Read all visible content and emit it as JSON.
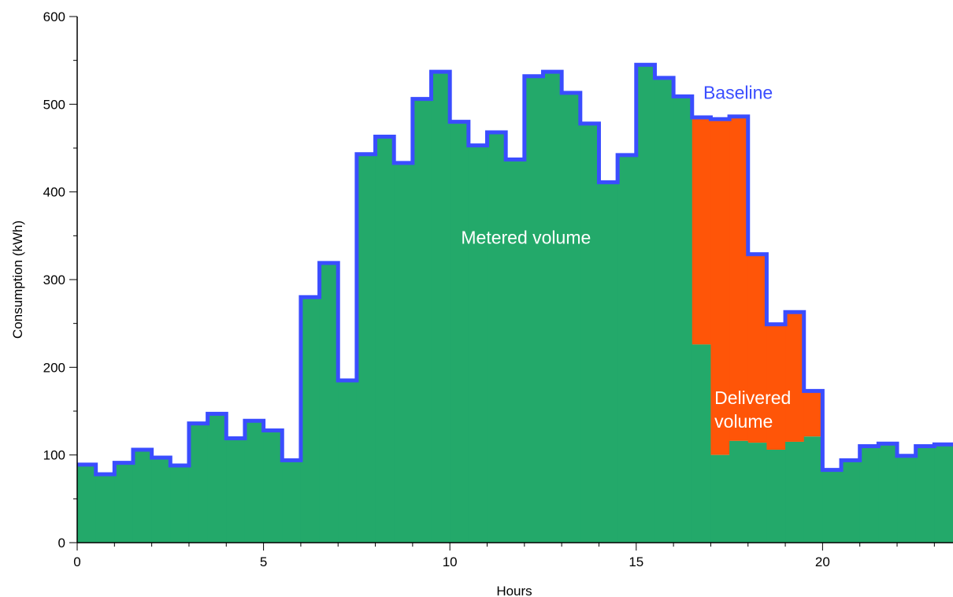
{
  "chart_data": {
    "type": "area",
    "xlabel": "Hours",
    "ylabel": "Consumption (kWh)",
    "xlim": [
      0,
      23.5
    ],
    "ylim": [
      0,
      600
    ],
    "x_ticks": [
      0,
      5,
      10,
      15,
      20
    ],
    "y_ticks": [
      0,
      100,
      200,
      300,
      400,
      500,
      600
    ],
    "step_hours": 0.5,
    "series": [
      {
        "name": "Baseline",
        "color": "#3a4dff",
        "values": [
          89,
          78,
          91,
          106,
          97,
          88,
          136,
          147,
          119,
          139,
          128,
          94,
          280,
          319,
          185,
          443,
          463,
          433,
          506,
          537,
          480,
          453,
          468,
          437,
          532,
          537,
          513,
          478,
          411,
          442,
          545,
          530,
          509,
          485,
          483,
          486,
          329,
          249,
          263,
          173,
          83,
          94,
          110,
          113,
          99,
          110,
          112
        ]
      },
      {
        "name": "Metered volume",
        "color": "#23a96a",
        "values": [
          89,
          78,
          91,
          106,
          97,
          88,
          136,
          147,
          119,
          139,
          128,
          94,
          280,
          319,
          185,
          443,
          463,
          433,
          506,
          537,
          480,
          453,
          468,
          437,
          532,
          537,
          513,
          478,
          411,
          442,
          545,
          530,
          509,
          226,
          100,
          116,
          114,
          106,
          115,
          121,
          83,
          94,
          110,
          113,
          99,
          110,
          112
        ]
      }
    ],
    "delivered_color": "#ff5508",
    "annotations": [
      {
        "text": "Baseline",
        "color": "#3a4dff",
        "x": 16.8,
        "y": 506
      },
      {
        "text": "Metered volume",
        "color": "#ffffff",
        "x": 10.3,
        "y": 341
      },
      {
        "text": "Delivered",
        "color": "#ffffff",
        "x": 17.1,
        "y": 158
      },
      {
        "text": "volume",
        "color": "#ffffff",
        "x": 17.1,
        "y": 131
      }
    ]
  }
}
